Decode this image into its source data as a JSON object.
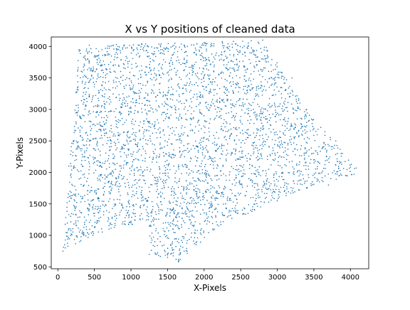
{
  "chart_data": {
    "type": "scatter",
    "title": "X vs Y positions of cleaned data",
    "xlabel": "X-Pixels",
    "ylabel": "Y-Pixels",
    "xlim": [
      -90,
      4250
    ],
    "ylim": [
      470,
      4150
    ],
    "xticks": [
      0,
      500,
      1000,
      1500,
      2000,
      2500,
      3000,
      3500,
      4000
    ],
    "xtick_labels": [
      "0",
      "500",
      "1000",
      "1500",
      "2000",
      "2500",
      "3000",
      "3500",
      "4000"
    ],
    "yticks": [
      500,
      1000,
      1500,
      2000,
      2500,
      3000,
      3500,
      4000
    ],
    "ytick_labels": [
      "500",
      "1000",
      "1500",
      "2000",
      "2500",
      "3000",
      "3500",
      "4000"
    ],
    "grid": false,
    "legend": "none",
    "marker_color": "#1f77b4",
    "region_boundary": {
      "x": [
        70,
        290,
        430,
        1000,
        1800,
        2800,
        3400,
        4080,
        4050,
        3400,
        2200,
        1650,
        1250,
        1250,
        480,
        70
      ],
      "y": [
        750,
        3950,
        4020,
        4040,
        4060,
        4100,
        3000,
        2070,
        1970,
        1750,
        1150,
        580,
        700,
        1250,
        1000,
        750
      ]
    },
    "density_gap": {
      "y": 2150,
      "x_range": [
        1050,
        3150
      ]
    },
    "x": [
      70,
      150,
      290,
      430,
      800,
      1200,
      1600,
      2000,
      2400,
      2800,
      3200,
      3400,
      3800,
      4080,
      4050,
      3700,
      3400,
      3000,
      2600,
      2200,
      1900,
      1650,
      1500,
      1250,
      1000,
      700,
      480,
      300,
      1500,
      2500,
      3000,
      1000,
      2000,
      500,
      3500
    ],
    "y": [
      750,
      2100,
      3950,
      4020,
      4030,
      4040,
      4050,
      4060,
      4080,
      4100,
      3500,
      3000,
      2500,
      2070,
      1970,
      1800,
      1750,
      1550,
      1350,
      1150,
      900,
      580,
      650,
      700,
      1200,
      1100,
      1000,
      900,
      3000,
      2800,
      2600,
      2500,
      1600,
      3400,
      2200
    ]
  }
}
